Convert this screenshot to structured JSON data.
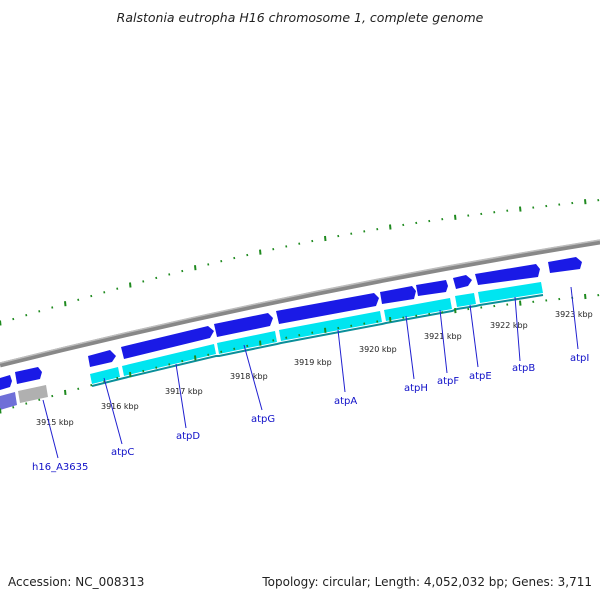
{
  "title": "Ralstonia eutropha H16 chromosome 1, complete genome",
  "footer": {
    "accession": "Accession: NC_008313",
    "stats": "Topology: circular; Length: 4,052,032 bp; Genes: 3,711"
  },
  "colors": {
    "forward_gene": "#1a1ae6",
    "cds": "#00e5f0",
    "backbone": "#888888",
    "tick": "#1f8a1f",
    "label": "#1010c8",
    "other_gene": "#6f6fd8",
    "pseudo": "#b0b0b0"
  },
  "position_labels": [
    "3915 kbp",
    "3916 kbp",
    "3917 kbp",
    "3918 kbp",
    "3919 kbp",
    "3920 kbp",
    "3921 kbp",
    "3922 kbp",
    "3923 kbp"
  ],
  "gene_labels": [
    "h16_A3635",
    "atpC",
    "atpD",
    "atpG",
    "atpA",
    "atpH",
    "atpF",
    "atpE",
    "atpB",
    "atpI"
  ]
}
